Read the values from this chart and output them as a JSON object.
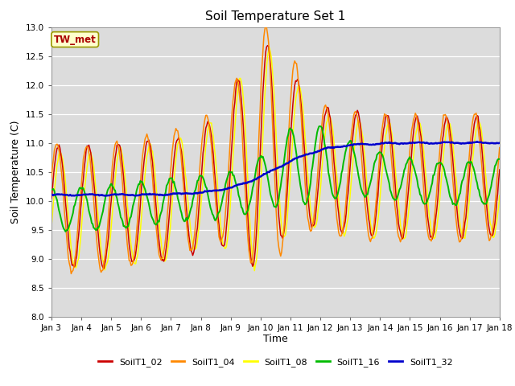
{
  "title": "Soil Temperature Set 1",
  "xlabel": "Time",
  "ylabel": "Soil Temperature (C)",
  "ylim": [
    8.0,
    13.0
  ],
  "yticks": [
    8.0,
    8.5,
    9.0,
    9.5,
    10.0,
    10.5,
    11.0,
    11.5,
    12.0,
    12.5,
    13.0
  ],
  "bg_color": "#dcdcdc",
  "grid_color": "#ffffff",
  "annotation_text": "TW_met",
  "annotation_bg": "#ffffcc",
  "annotation_border": "#999900",
  "annotation_text_color": "#aa0000",
  "colors": {
    "SoilT1_02": "#cc0000",
    "SoilT1_04": "#ff8800",
    "SoilT1_08": "#ffff00",
    "SoilT1_16": "#00bb00",
    "SoilT1_32": "#0000cc"
  },
  "x_tick_labels": [
    "Jan 3",
    "Jan 4",
    "Jan 5",
    "Jan 6",
    "Jan 7",
    "Jan 8",
    "Jan 9",
    "Jan 10",
    "Jan 11",
    "Jan 12",
    "Jan 13",
    "Jan 14",
    "Jan 15",
    "Jan 16",
    "Jan 17",
    "Jan 18"
  ],
  "n_points": 480
}
